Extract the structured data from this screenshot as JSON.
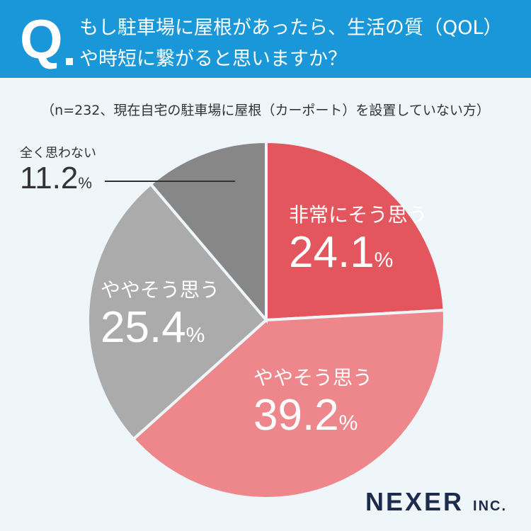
{
  "header": {
    "q": "Q",
    "title": "もし駐車場に屋根があったら、生活の質（QOL）\nや時短に繋がると思いますか？"
  },
  "note": "（n=232、現在自宅の駐車場に屋根（カーポート）を設置していない方）",
  "logo": {
    "main": "NEXER",
    "sub": "INC."
  },
  "chart_data": {
    "type": "pie",
    "title": "もし駐車場に屋根があったら、生活の質（QOL）や時短に繋がると思いますか？",
    "unit": "%",
    "slices": [
      {
        "label": "非常にそう思う",
        "value": 24.1,
        "color": "#e4565e"
      },
      {
        "label": "ややそう思う",
        "value": 39.2,
        "color": "#ee878b"
      },
      {
        "label": "ややそう思う",
        "value": 25.4,
        "color": "#ababab"
      },
      {
        "label": "全く思わない",
        "value": 11.2,
        "color": "#878787"
      }
    ],
    "start": "top",
    "direction": "clockwise"
  }
}
